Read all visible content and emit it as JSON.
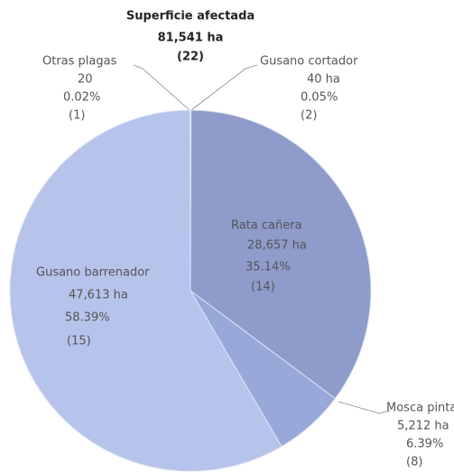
{
  "chart_data": {
    "type": "pie",
    "title": "Superficie afectada",
    "subtitle": "81,541 ha",
    "total_count": "(22)",
    "categories": [
      "Gusano cortador",
      "Rata cañera",
      "Mosca pinta",
      "Gusano barrenador",
      "Otras plagas"
    ],
    "values": [
      40,
      28657,
      5212,
      47613,
      20
    ],
    "value_labels": [
      "40 ha",
      "28,657 ha",
      "5,212 ha",
      "47,613 ha",
      "20"
    ],
    "percent_labels": [
      "0.05%",
      "35.14%",
      "6.39%",
      "58.39%",
      "0.02%"
    ],
    "count_labels": [
      "(2)",
      "(14)",
      "(8)",
      "(15)",
      "(1)"
    ],
    "colors": [
      "#a9b6e0",
      "#8e9bcb",
      "#98a8d9",
      "#b6c3ea",
      "#b0bde6"
    ]
  }
}
